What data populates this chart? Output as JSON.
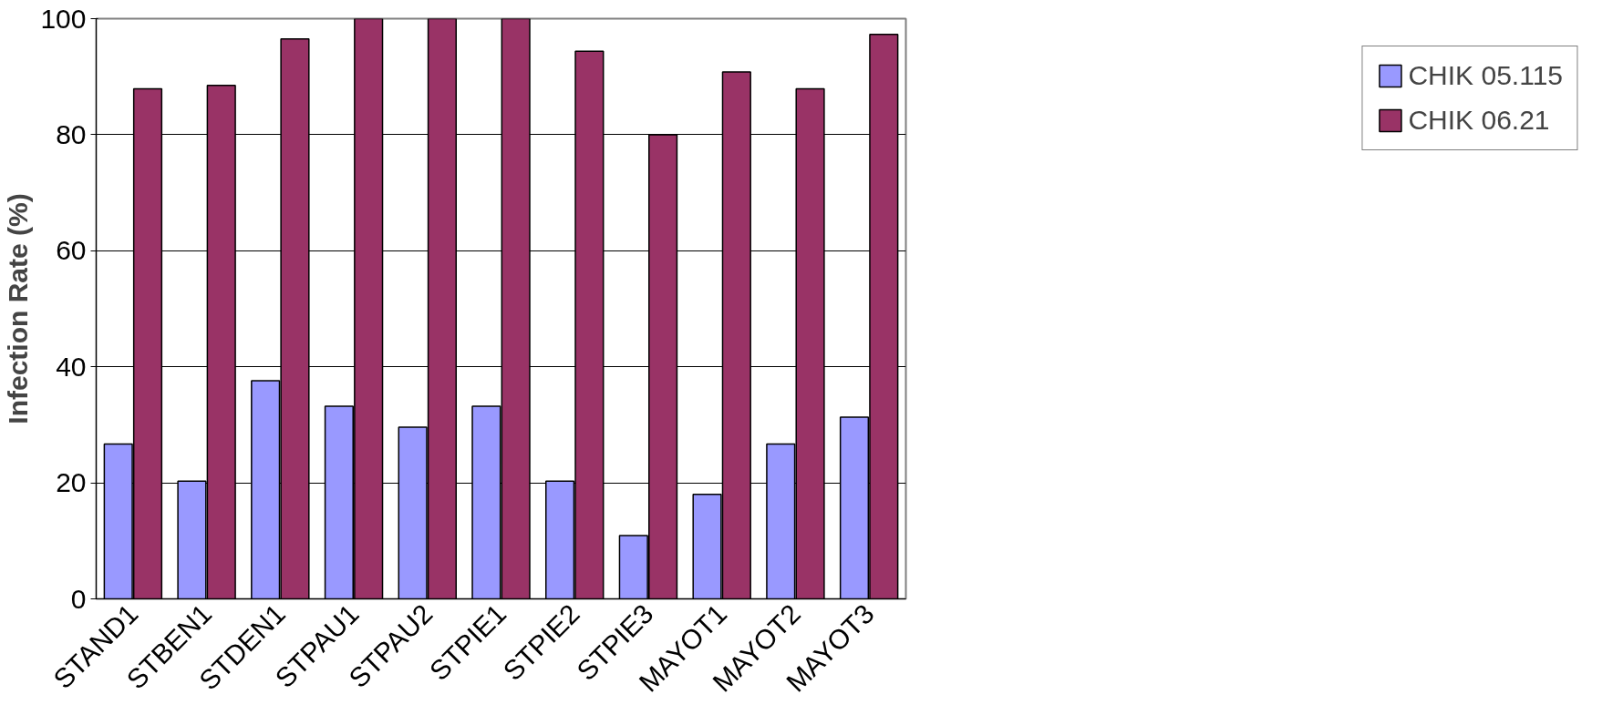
{
  "chart_data": {
    "type": "bar",
    "ylabel": "Infection Rate (%)",
    "categories": [
      "STAND1",
      "STBEN1",
      "STDEN1",
      "STPAU1",
      "STPAU2",
      "STPIE1",
      "STPIE2",
      "STPIE3",
      "MAYOT1",
      "MAYOT2",
      "MAYOT3"
    ],
    "series": [
      {
        "name": "CHIK 05.115",
        "color": "#9999ff",
        "values": [
          26.7,
          20.3,
          37.6,
          33.2,
          29.6,
          33.2,
          20.3,
          10.9,
          18,
          26.7,
          31.3
        ]
      },
      {
        "name": "CHIK 06.21",
        "color": "#993366",
        "values": [
          87.9,
          88.5,
          96.5,
          100,
          100,
          100,
          94.4,
          80,
          90.8,
          87.9,
          97.3
        ]
      }
    ],
    "ylim": [
      0,
      100
    ],
    "yticks": [
      0,
      20,
      40,
      60,
      80,
      100
    ],
    "grid": "y",
    "legend": "right"
  }
}
